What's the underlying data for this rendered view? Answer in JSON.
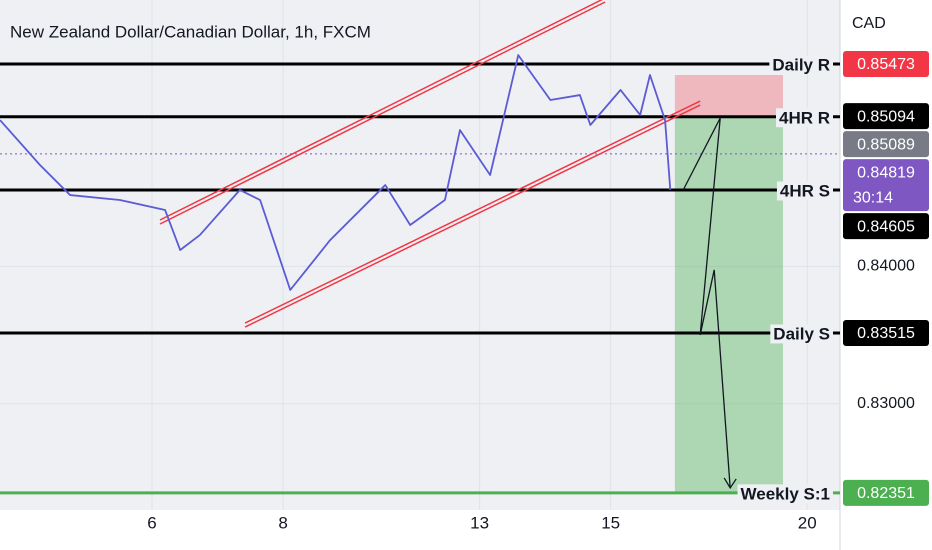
{
  "chart_data": {
    "type": "line",
    "title": "New Zealand Dollar/Canadian Dollar, 1h, FXCM",
    "currency": "CAD",
    "xlim": [
      -2.32,
      10.5
    ],
    "xticks": [
      {
        "value": 0,
        "label": "6"
      },
      {
        "value": 2,
        "label": "8"
      },
      {
        "value": 5,
        "label": "13"
      },
      {
        "value": 7,
        "label": "15"
      },
      {
        "value": 10,
        "label": "20"
      }
    ],
    "ylim": [
      0.82241,
      0.85939
    ],
    "yticks": [
      {
        "value": 0.84,
        "label": "0.84000"
      },
      {
        "value": 0.83,
        "label": "0.83000"
      }
    ],
    "grid": true,
    "series": [
      {
        "color": "#5b5bd6",
        "x": [
          -2.32,
          -1.71,
          -1.25,
          -0.49,
          0.2,
          0.43,
          0.73,
          1.34,
          1.65,
          2.11,
          2.72,
          3.56,
          3.94,
          4.47,
          4.7,
          5.16,
          5.59,
          6.08,
          6.53,
          6.69,
          7.15,
          7.45,
          7.6,
          7.83,
          7.91
        ],
        "values": [
          0.85065,
          0.84738,
          0.84519,
          0.84483,
          0.8441,
          0.84119,
          0.84228,
          0.84556,
          0.84483,
          0.83828,
          0.84192,
          0.84592,
          0.84301,
          0.84483,
          0.84992,
          0.84665,
          0.85538,
          0.85211,
          0.85247,
          0.85029,
          0.85284,
          0.85102,
          0.85393,
          0.85065,
          0.84556
        ]
      }
    ],
    "trendlines": [
      {
        "color": "#f23645",
        "x": [
          0.122,
          6.916
        ],
        "values": [
          0.84323,
          0.85939
        ]
      },
      {
        "color": "#f23645",
        "x": [
          1.42,
          8.366
        ],
        "values": [
          0.83573,
          0.85189
        ]
      }
    ],
    "levels": [
      {
        "name": "Daily R",
        "value": 0.85473,
        "color": "#000000"
      },
      {
        "name": "4HR R",
        "value": 0.85089,
        "color": "#000000"
      },
      {
        "name": "4HR S",
        "value": 0.84556,
        "color": "#000000"
      },
      {
        "name": "Daily S",
        "value": 0.83515,
        "color": "#000000"
      },
      {
        "name": "Weekly S:1",
        "value": 0.82351,
        "color": "#4caf50"
      }
    ],
    "current_price": 0.84819,
    "countdown": "30:14",
    "position": {
      "x": [
        7.98,
        9.63
      ],
      "entry": 0.85089,
      "stop": 0.85393,
      "target": 0.82351
    },
    "projection": {
      "x": [
        8.107,
        8.672,
        8.366,
        8.58,
        8.824
      ],
      "values": [
        0.84556,
        0.8508,
        0.835,
        0.83974,
        0.82387
      ]
    },
    "price_labels": [
      {
        "value": 0.85473,
        "color": "#f23645"
      },
      {
        "value": 0.85094,
        "color": "#000000"
      },
      {
        "value": 0.85089,
        "color": "#787b86"
      },
      {
        "value": 0.84819,
        "color": "#7e57c2"
      },
      {
        "value": 0.84605,
        "color": "#000000"
      },
      {
        "value": 0.83515,
        "color": "#000000"
      },
      {
        "value": 0.82351,
        "color": "#4caf50"
      }
    ]
  }
}
